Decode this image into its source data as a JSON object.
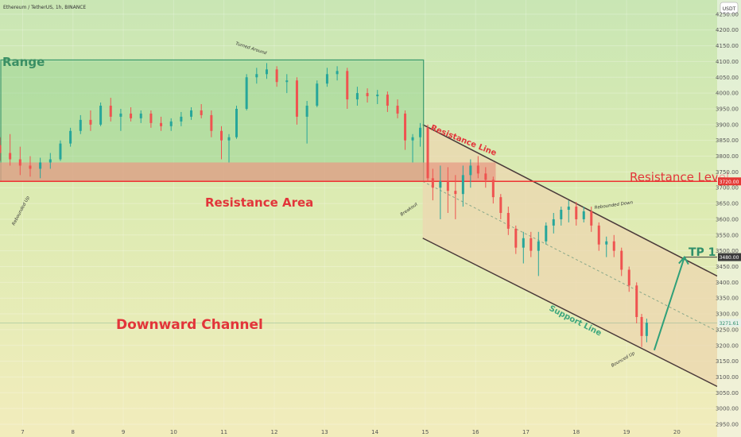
{
  "header": {
    "symbol_title": "Ethereum / TetherUS, 1h, BINANCE",
    "currency_badge": "USDT"
  },
  "chart_data": {
    "type": "candlestick",
    "price_axis": {
      "ticks": [
        2950,
        3000,
        3050,
        3100,
        3150,
        3200,
        3250,
        3300,
        3350,
        3400,
        3450,
        3500,
        3550,
        3600,
        3650,
        3700,
        3750,
        3800,
        3850,
        3900,
        3950,
        4000,
        4050,
        4100,
        4150,
        4200,
        4250
      ],
      "tick_labels": [
        "2950.00",
        "3000.00",
        "3050.00",
        "3100.00",
        "3150.00",
        "3200.00",
        "3250.00",
        "3300.00",
        "3350.00",
        "3400.00",
        "3450.00",
        "3500.00",
        "3550.00",
        "3600.00",
        "3650.00",
        "3700.00",
        "3750.00",
        "3800.00",
        "3850.00",
        "3900.00",
        "3950.00",
        "4000.00",
        "4050.00",
        "4100.00",
        "4150.00",
        "4200.00",
        "4250.00"
      ],
      "range": [
        2945,
        4295
      ]
    },
    "time_axis": {
      "ticks": [
        7,
        8,
        9,
        10,
        11,
        12,
        13,
        14,
        15,
        16,
        17,
        18,
        19,
        20
      ],
      "tick_labels": [
        "7",
        "8",
        "9",
        "10",
        "11",
        "12",
        "13",
        "14",
        "15",
        "16",
        "17",
        "18",
        "19",
        "20"
      ],
      "range": [
        6.55,
        20.8
      ]
    },
    "candles": [
      [
        6.55,
        3835,
        3860,
        3785,
        3810
      ],
      [
        6.75,
        3810,
        3870,
        3770,
        3790
      ],
      [
        6.95,
        3790,
        3830,
        3740,
        3770
      ],
      [
        7.15,
        3770,
        3800,
        3735,
        3760
      ],
      [
        7.35,
        3760,
        3795,
        3730,
        3780
      ],
      [
        7.55,
        3780,
        3810,
        3760,
        3790
      ],
      [
        7.75,
        3790,
        3850,
        3785,
        3840
      ],
      [
        7.95,
        3840,
        3890,
        3830,
        3880
      ],
      [
        8.15,
        3880,
        3930,
        3870,
        3915
      ],
      [
        8.35,
        3915,
        3945,
        3880,
        3900
      ],
      [
        8.55,
        3900,
        3970,
        3895,
        3960
      ],
      [
        8.75,
        3960,
        3985,
        3910,
        3925
      ],
      [
        8.95,
        3925,
        3950,
        3880,
        3935
      ],
      [
        9.15,
        3935,
        3955,
        3910,
        3920
      ],
      [
        9.35,
        3920,
        3945,
        3905,
        3935
      ],
      [
        9.55,
        3935,
        3945,
        3890,
        3905
      ],
      [
        9.75,
        3905,
        3925,
        3880,
        3895
      ],
      [
        9.95,
        3895,
        3920,
        3880,
        3910
      ],
      [
        10.15,
        3910,
        3940,
        3895,
        3925
      ],
      [
        10.35,
        3925,
        3955,
        3915,
        3945
      ],
      [
        10.55,
        3945,
        3965,
        3920,
        3930
      ],
      [
        10.75,
        3930,
        3945,
        3860,
        3880
      ],
      [
        10.95,
        3880,
        3895,
        3790,
        3850
      ],
      [
        11.1,
        3850,
        3870,
        3780,
        3860
      ],
      [
        11.25,
        3860,
        3960,
        3855,
        3950
      ],
      [
        11.45,
        3950,
        4060,
        3945,
        4050
      ],
      [
        11.65,
        4050,
        4080,
        4030,
        4060
      ],
      [
        11.85,
        4060,
        4095,
        4045,
        4075
      ],
      [
        12.05,
        4075,
        4085,
        4020,
        4035
      ],
      [
        12.25,
        4035,
        4060,
        4000,
        4040
      ],
      [
        12.45,
        4040,
        4050,
        3900,
        3925
      ],
      [
        12.65,
        3925,
        3975,
        3840,
        3960
      ],
      [
        12.85,
        3960,
        4040,
        3955,
        4030
      ],
      [
        13.05,
        4030,
        4080,
        4020,
        4060
      ],
      [
        13.25,
        4060,
        4085,
        4040,
        4070
      ],
      [
        13.45,
        4070,
        4080,
        3950,
        3980
      ],
      [
        13.65,
        3980,
        4020,
        3960,
        4000
      ],
      [
        13.85,
        4000,
        4015,
        3970,
        3990
      ],
      [
        14.05,
        3990,
        4010,
        3965,
        3995
      ],
      [
        14.25,
        3995,
        4005,
        3940,
        3960
      ],
      [
        14.45,
        3960,
        3980,
        3920,
        3935
      ],
      [
        14.6,
        3935,
        3945,
        3820,
        3850
      ],
      [
        14.75,
        3850,
        3870,
        3780,
        3860
      ],
      [
        14.9,
        3860,
        3905,
        3830,
        3890
      ],
      [
        15.05,
        3890,
        3900,
        3720,
        3730
      ],
      [
        15.15,
        3730,
        3760,
        3660,
        3700
      ],
      [
        15.3,
        3700,
        3770,
        3600,
        3720
      ],
      [
        15.45,
        3720,
        3765,
        3620,
        3690
      ],
      [
        15.6,
        3690,
        3740,
        3600,
        3680
      ],
      [
        15.75,
        3680,
        3770,
        3640,
        3740
      ],
      [
        15.9,
        3740,
        3790,
        3700,
        3770
      ],
      [
        16.05,
        3770,
        3800,
        3730,
        3745
      ],
      [
        16.2,
        3745,
        3765,
        3700,
        3725
      ],
      [
        16.35,
        3725,
        3735,
        3650,
        3670
      ],
      [
        16.5,
        3670,
        3680,
        3600,
        3620
      ],
      [
        16.65,
        3620,
        3640,
        3550,
        3570
      ],
      [
        16.8,
        3570,
        3580,
        3490,
        3510
      ],
      [
        16.95,
        3510,
        3560,
        3460,
        3540
      ],
      [
        17.1,
        3540,
        3560,
        3480,
        3500
      ],
      [
        17.25,
        3500,
        3560,
        3420,
        3530
      ],
      [
        17.4,
        3530,
        3590,
        3520,
        3580
      ],
      [
        17.55,
        3580,
        3620,
        3555,
        3600
      ],
      [
        17.7,
        3600,
        3640,
        3580,
        3630
      ],
      [
        17.85,
        3630,
        3660,
        3590,
        3640
      ],
      [
        18.0,
        3640,
        3655,
        3580,
        3600
      ],
      [
        18.15,
        3600,
        3640,
        3590,
        3625
      ],
      [
        18.3,
        3625,
        3640,
        3560,
        3580
      ],
      [
        18.45,
        3580,
        3590,
        3500,
        3520
      ],
      [
        18.6,
        3520,
        3545,
        3480,
        3530
      ],
      [
        18.75,
        3530,
        3550,
        3480,
        3500
      ],
      [
        18.9,
        3500,
        3510,
        3420,
        3440
      ],
      [
        19.05,
        3440,
        3450,
        3370,
        3390
      ],
      [
        19.2,
        3390,
        3400,
        3270,
        3290
      ],
      [
        19.3,
        3290,
        3300,
        3195,
        3230
      ],
      [
        19.4,
        3230,
        3285,
        3210,
        3272
      ]
    ],
    "current_price": 3271.61,
    "zones": {
      "range_box": {
        "label": "Range",
        "x": [
          6.55,
          14.95
        ],
        "y": [
          3720,
          4105
        ]
      },
      "resistance_area": {
        "label": "Resistance Area",
        "x": [
          6.55,
          16.4
        ],
        "y": [
          3720,
          3780
        ]
      },
      "channel": {
        "label": "Downward Channel",
        "upper": [
          [
            14.95,
            3900
          ],
          [
            20.8,
            3420
          ]
        ],
        "lower": [
          [
            14.95,
            3540
          ],
          [
            20.8,
            3070
          ]
        ],
        "mid": [
          [
            14.95,
            3720
          ],
          [
            20.8,
            3245
          ]
        ]
      }
    },
    "lines": {
      "resistance_level": {
        "label": "Resistance Level",
        "price": 3720.0,
        "price_label": "3720.00"
      },
      "target": {
        "label": "TP 1",
        "price": 3480.0,
        "price_label": "3480.00"
      },
      "resistance_line_label": "Resistance Line",
      "support_line_label": "Support Line",
      "projection": [
        [
          19.55,
          3185
        ],
        [
          20.15,
          3480
        ]
      ]
    },
    "annotations": [
      {
        "text": "Turned Around",
        "x": 11.9,
        "y": 4120
      },
      {
        "text": "Rebounded Up",
        "x": 7.2,
        "y": 3625
      },
      {
        "text": "Breakout",
        "x": 14.8,
        "y": 3650
      },
      {
        "text": "Rebounded Down",
        "x": 18.7,
        "y": 3660
      },
      {
        "text": "Bounced Up",
        "x": 19.25,
        "y": 3160
      }
    ],
    "colors": {
      "up": "#26a69a",
      "down": "#ef5350",
      "range_fill": "#8fd18f",
      "range_stroke": "#3c9a6e",
      "resistance_fill": "#e79c86",
      "resistance_line": "#ee3333",
      "channel_fill": "#ecd7b0",
      "channel_line": "#4a3a3a",
      "support_text": "#3ea77d",
      "title_red": "#e2353a"
    }
  }
}
